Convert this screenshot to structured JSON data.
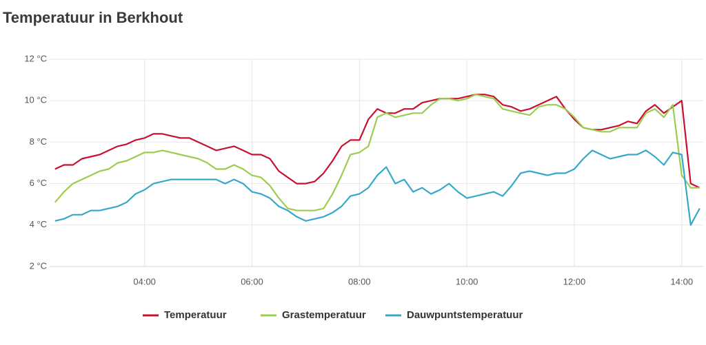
{
  "chart_data": {
    "type": "line",
    "title": "Temperatuur in Berkhout",
    "x": [
      140,
      150,
      160,
      170,
      180,
      190,
      200,
      210,
      220,
      230,
      240,
      250,
      260,
      270,
      280,
      290,
      300,
      310,
      320,
      330,
      340,
      350,
      360,
      370,
      380,
      390,
      400,
      410,
      420,
      430,
      440,
      450,
      460,
      470,
      480,
      490,
      500,
      510,
      520,
      530,
      540,
      550,
      560,
      570,
      580,
      590,
      600,
      610,
      620,
      630,
      640,
      650,
      660,
      670,
      680,
      690,
      700,
      710,
      720,
      730,
      740,
      750,
      760,
      770,
      780,
      790,
      800,
      810,
      820,
      830,
      840,
      850,
      860
    ],
    "series": [
      {
        "name": "Temperatuur",
        "color": "#c8102e",
        "values": [
          6.7,
          6.9,
          6.9,
          7.2,
          7.3,
          7.4,
          7.6,
          7.8,
          7.9,
          8.1,
          8.2,
          8.4,
          8.4,
          8.3,
          8.2,
          8.2,
          8.0,
          7.8,
          7.6,
          7.7,
          7.8,
          7.6,
          7.4,
          7.4,
          7.2,
          6.6,
          6.3,
          6.0,
          6.0,
          6.1,
          6.5,
          7.1,
          7.8,
          8.1,
          8.1,
          9.1,
          9.6,
          9.4,
          9.4,
          9.6,
          9.6,
          9.9,
          10.0,
          10.1,
          10.1,
          10.1,
          10.2,
          10.3,
          10.3,
          10.2,
          9.8,
          9.7,
          9.5,
          9.6,
          9.8,
          10.0,
          10.2,
          9.6,
          9.1,
          8.7,
          8.6,
          8.6,
          8.7,
          8.8,
          9.0,
          8.9,
          9.5,
          9.8,
          9.4,
          9.7,
          10.0,
          6.0,
          5.8
        ]
      },
      {
        "name": "Grastemperatuur",
        "color": "#9ccc4f",
        "values": [
          5.1,
          5.6,
          6.0,
          6.2,
          6.4,
          6.6,
          6.7,
          7.0,
          7.1,
          7.3,
          7.5,
          7.5,
          7.6,
          7.5,
          7.4,
          7.3,
          7.2,
          7.0,
          6.7,
          6.7,
          6.9,
          6.7,
          6.4,
          6.3,
          5.9,
          5.3,
          4.8,
          4.7,
          4.7,
          4.7,
          4.8,
          5.5,
          6.4,
          7.4,
          7.5,
          7.8,
          9.2,
          9.4,
          9.2,
          9.3,
          9.4,
          9.4,
          9.8,
          10.1,
          10.1,
          10.0,
          10.1,
          10.3,
          10.2,
          10.1,
          9.6,
          9.5,
          9.4,
          9.3,
          9.7,
          9.8,
          9.8,
          9.6,
          9.2,
          8.7,
          8.6,
          8.5,
          8.5,
          8.7,
          8.7,
          8.7,
          9.4,
          9.6,
          9.2,
          9.8,
          6.4,
          5.8,
          5.8
        ]
      },
      {
        "name": "Dauwpuntstemperatuur",
        "color": "#35a8c9",
        "values": [
          4.2,
          4.3,
          4.5,
          4.5,
          4.7,
          4.7,
          4.8,
          4.9,
          5.1,
          5.5,
          5.7,
          6.0,
          6.1,
          6.2,
          6.2,
          6.2,
          6.2,
          6.2,
          6.2,
          6.0,
          6.2,
          6.0,
          5.6,
          5.5,
          5.3,
          4.9,
          4.7,
          4.4,
          4.2,
          4.3,
          4.4,
          4.6,
          4.9,
          5.4,
          5.5,
          5.8,
          6.4,
          6.8,
          6.0,
          6.2,
          5.6,
          5.8,
          5.5,
          5.7,
          6.0,
          5.6,
          5.3,
          5.4,
          5.5,
          5.6,
          5.4,
          5.9,
          6.5,
          6.6,
          6.5,
          6.4,
          6.5,
          6.5,
          6.7,
          7.2,
          7.6,
          7.4,
          7.2,
          7.3,
          7.4,
          7.4,
          7.6,
          7.3,
          6.9,
          7.5,
          7.4,
          4.0,
          4.8
        ]
      }
    ],
    "xlim": [
      134,
      864
    ],
    "xticks": [
      {
        "value": 240,
        "label": "04:00"
      },
      {
        "value": 360,
        "label": "06:00"
      },
      {
        "value": 480,
        "label": "08:00"
      },
      {
        "value": 600,
        "label": "10:00"
      },
      {
        "value": 720,
        "label": "12:00"
      },
      {
        "value": 840,
        "label": "14:00"
      }
    ],
    "ylim": [
      2,
      12
    ],
    "yticks": [
      {
        "value": 2,
        "label": "2 °C"
      },
      {
        "value": 4,
        "label": "4 °C"
      },
      {
        "value": 6,
        "label": "6 °C"
      },
      {
        "value": 8,
        "label": "8 °C"
      },
      {
        "value": 10,
        "label": "10 °C"
      },
      {
        "value": 12,
        "label": "12 °C"
      }
    ],
    "grid": true,
    "legend": "bottom"
  }
}
